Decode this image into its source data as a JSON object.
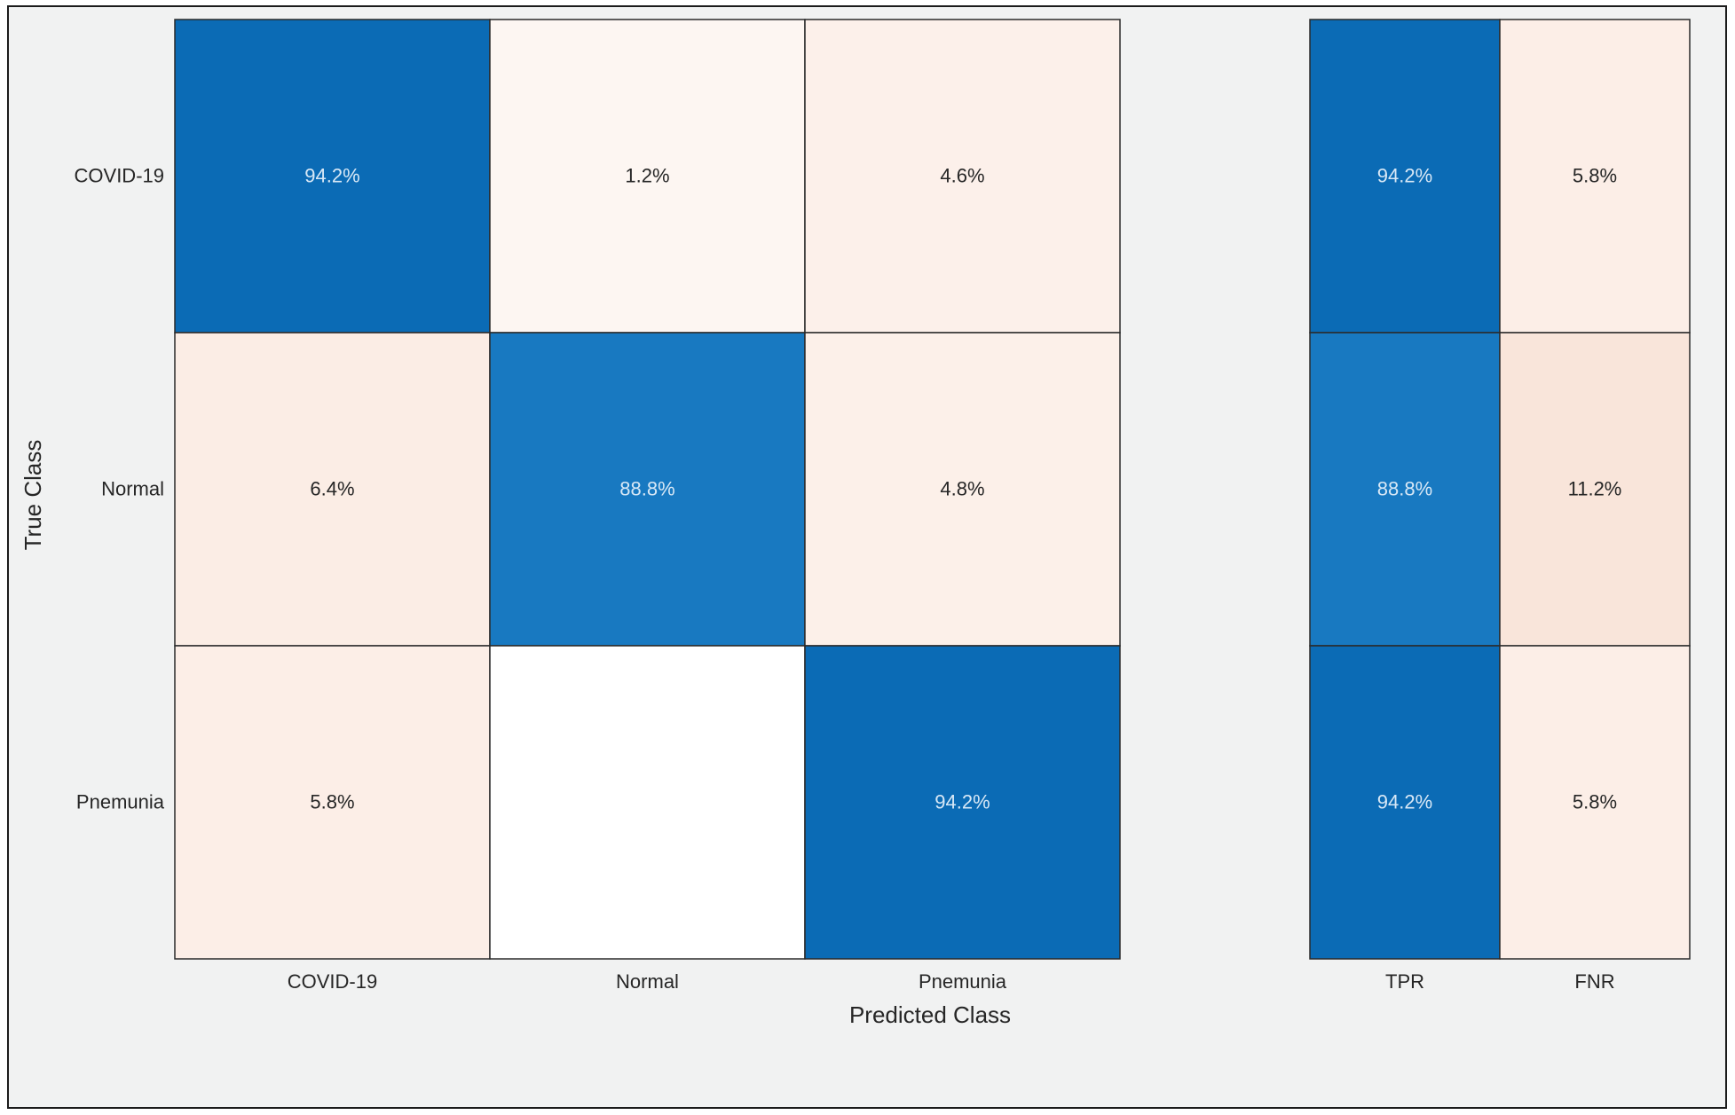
{
  "chart_data": {
    "type": "heatmap",
    "xlabel": "Predicted Class",
    "ylabel": "True Class",
    "true_classes": [
      "COVID-19",
      "Normal",
      "Pnemunia"
    ],
    "predicted_classes": [
      "COVID-19",
      "Normal",
      "Pnemunia"
    ],
    "matrix_values": [
      [
        94.2,
        1.2,
        4.6
      ],
      [
        6.4,
        88.8,
        4.8
      ],
      [
        5.8,
        null,
        94.2
      ]
    ],
    "matrix_labels": [
      [
        "94.2%",
        "1.2%",
        "4.6%"
      ],
      [
        "6.4%",
        "88.8%",
        "4.8%"
      ],
      [
        "5.8%",
        "",
        "94.2%"
      ]
    ],
    "summary_columns": [
      "TPR",
      "FNR"
    ],
    "summary_values": [
      [
        94.2,
        5.8
      ],
      [
        88.8,
        11.2
      ],
      [
        94.2,
        5.8
      ]
    ],
    "summary_labels": [
      [
        "94.2%",
        "5.8%"
      ],
      [
        "88.8%",
        "11.2%"
      ],
      [
        "94.2%",
        "5.8%"
      ]
    ],
    "colors": {
      "high": "#0b6bb5",
      "mid": "#1879c1",
      "low": "#fdeee6",
      "empty": "#ffffff",
      "text_on_dark": "#d8e8f6",
      "text_on_light": "#262626"
    }
  }
}
